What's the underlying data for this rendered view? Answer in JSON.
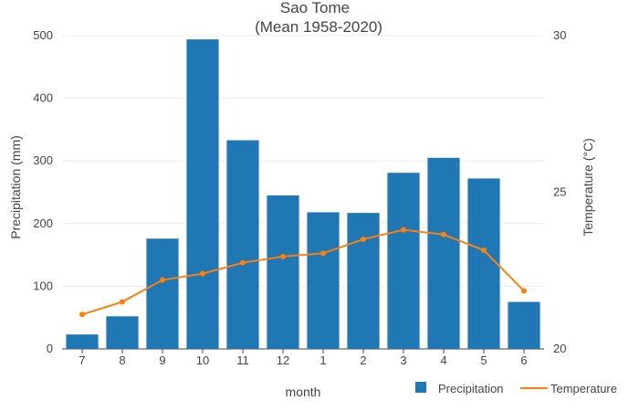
{
  "chart_data": {
    "type": "bar+line",
    "title": "Sao Tome",
    "subtitle": "(Mean 1958-2020)",
    "xlabel": "month",
    "ylabel_left": "Precipitation (mm)",
    "ylabel_right": "Temperature (°C)",
    "categories": [
      "7",
      "8",
      "9",
      "10",
      "11",
      "12",
      "1",
      "2",
      "3",
      "4",
      "5",
      "6"
    ],
    "ylim_left": [
      0,
      500
    ],
    "yticks_left": [
      0,
      100,
      200,
      300,
      400,
      500
    ],
    "ylim_right": [
      20,
      30
    ],
    "yticks_right": [
      20,
      25,
      30
    ],
    "grid": true,
    "legend_position": "bottom-right",
    "series": [
      {
        "name": "Precipitation",
        "type": "bar",
        "axis": "left",
        "color": "#1f77b4",
        "values": [
          23,
          52,
          176,
          494,
          333,
          245,
          218,
          217,
          281,
          305,
          272,
          75
        ]
      },
      {
        "name": "Temperature",
        "type": "line",
        "axis": "right",
        "color": "#ff7f0e",
        "values": [
          21.1,
          21.5,
          22.2,
          22.4,
          22.75,
          22.95,
          23.05,
          23.5,
          23.8,
          23.65,
          23.15,
          21.85
        ]
      }
    ]
  }
}
